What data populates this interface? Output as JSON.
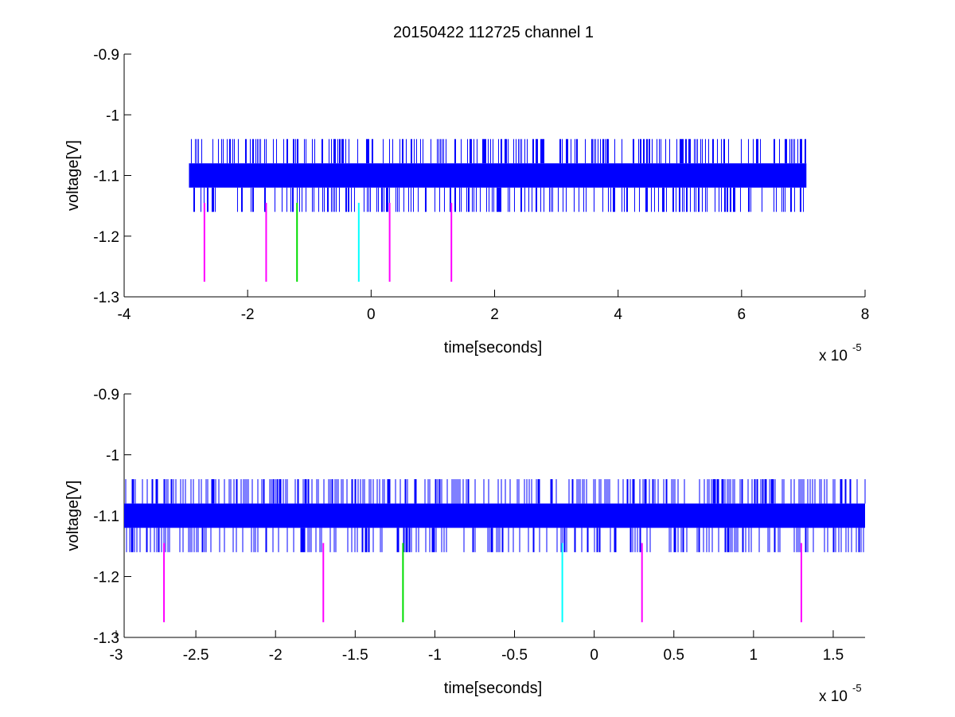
{
  "figure": {
    "title": "20150422 112725 channel 1"
  },
  "chart_data": [
    {
      "type": "line",
      "title": "20150422 112725 channel 1",
      "xlabel": "time[seconds]",
      "ylabel": "voltage[V]",
      "x_multiplier": {
        "base": "x 10",
        "exponent": "-5"
      },
      "xlim": [
        -4,
        8
      ],
      "ylim": [
        -1.3,
        -0.9
      ],
      "x_ticks": [
        -4,
        -2,
        0,
        2,
        4,
        6,
        8
      ],
      "x_tick_labels": [
        "-4",
        "-2",
        "0",
        "2",
        "4",
        "6",
        "8"
      ],
      "y_ticks": [
        -1.3,
        -1.2,
        -1.1,
        -1.0,
        -0.9
      ],
      "y_tick_labels": [
        "-1.3",
        "-1.2",
        "-1.1",
        "-1",
        "-0.9"
      ],
      "grid": false,
      "series": [
        {
          "kind": "signal_band",
          "color": "#0000ff",
          "x_start": -2.95,
          "x_end": 7.05,
          "band": [
            -1.12,
            -1.08
          ],
          "spike_range": [
            -1.16,
            -1.04
          ]
        }
      ],
      "markers": [
        {
          "x": -2.7,
          "y_range": [
            -1.275,
            -1.145
          ],
          "color": "#ff00ff"
        },
        {
          "x": -1.7,
          "y_range": [
            -1.275,
            -1.145
          ],
          "color": "#ff00ff"
        },
        {
          "x": -1.2,
          "y_range": [
            -1.275,
            -1.145
          ],
          "color": "#00dd00"
        },
        {
          "x": -0.2,
          "y_range": [
            -1.275,
            -1.145
          ],
          "color": "#00ffff"
        },
        {
          "x": 0.3,
          "y_range": [
            -1.275,
            -1.145
          ],
          "color": "#ff00ff"
        },
        {
          "x": 1.3,
          "y_range": [
            -1.275,
            -1.145
          ],
          "color": "#ff00ff"
        }
      ]
    },
    {
      "type": "line",
      "title": "",
      "xlabel": "time[seconds]",
      "ylabel": "voltage[V]",
      "x_multiplier": {
        "base": "x 10",
        "exponent": "-5"
      },
      "xlim": [
        -2.95,
        1.7
      ],
      "ylim": [
        -1.3,
        -0.9
      ],
      "x_ticks": [
        -3,
        -2.5,
        -2,
        -1.5,
        -1,
        -0.5,
        0,
        0.5,
        1,
        1.5
      ],
      "x_tick_labels": [
        "-3",
        "-2.5",
        "-2",
        "-1.5",
        "-1",
        "-0.5",
        "0",
        "0.5",
        "1",
        "1.5"
      ],
      "y_ticks": [
        -1.3,
        -1.2,
        -1.1,
        -1.0,
        -0.9
      ],
      "y_tick_labels": [
        "-1.3",
        "-1.2",
        "-1.1",
        "-1",
        "-0.9"
      ],
      "grid": false,
      "series": [
        {
          "kind": "signal_band",
          "color": "#0000ff",
          "x_start": -2.95,
          "x_end": 1.7,
          "band": [
            -1.12,
            -1.08
          ],
          "spike_range": [
            -1.16,
            -1.04
          ]
        }
      ],
      "markers": [
        {
          "x": -2.7,
          "y_range": [
            -1.275,
            -1.145
          ],
          "color": "#ff00ff"
        },
        {
          "x": -1.7,
          "y_range": [
            -1.275,
            -1.145
          ],
          "color": "#ff00ff"
        },
        {
          "x": -1.2,
          "y_range": [
            -1.275,
            -1.145
          ],
          "color": "#00dd00"
        },
        {
          "x": -0.2,
          "y_range": [
            -1.275,
            -1.145
          ],
          "color": "#00ffff"
        },
        {
          "x": 0.3,
          "y_range": [
            -1.275,
            -1.145
          ],
          "color": "#ff00ff"
        },
        {
          "x": 1.3,
          "y_range": [
            -1.275,
            -1.145
          ],
          "color": "#ff00ff"
        }
      ]
    }
  ]
}
